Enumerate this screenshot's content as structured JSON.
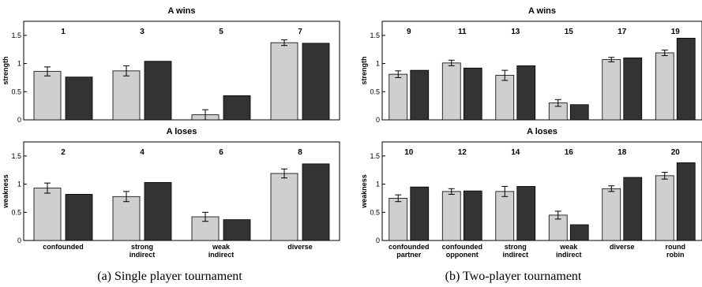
{
  "captions": {
    "a": "(a) Single player tournament",
    "b": "(b) Two-player tournament"
  },
  "colors": {
    "light": "#cfcfcf",
    "dark": "#333333"
  },
  "chart_data": [
    {
      "type": "bar",
      "title": "A wins",
      "ylabel": "strength",
      "ylim": [
        0,
        1.75
      ],
      "yticks": [
        "0",
        "0.5",
        "1",
        "1.5"
      ],
      "yticks_val": [
        0,
        0.5,
        1,
        1.5
      ],
      "group_numbers": [
        "1",
        "3",
        "5",
        "7"
      ],
      "categories": [
        "",
        "",
        "",
        ""
      ],
      "series": [
        {
          "values": [
            0.86,
            0.87,
            0.09,
            1.37
          ],
          "err": [
            0.08,
            0.09,
            0.09,
            0.05
          ]
        },
        {
          "values": [
            0.76,
            1.04,
            0.43,
            1.36
          ]
        }
      ]
    },
    {
      "type": "bar",
      "title": "A loses",
      "ylabel": "weakness",
      "ylim": [
        0,
        1.75
      ],
      "yticks": [
        "0",
        "0.5",
        "1",
        "1.5"
      ],
      "yticks_val": [
        0,
        0.5,
        1,
        1.5
      ],
      "group_numbers": [
        "2",
        "4",
        "6",
        "8"
      ],
      "categories": [
        "confounded",
        "strong|indirect",
        "weak|indirect",
        "diverse"
      ],
      "series": [
        {
          "values": [
            0.93,
            0.78,
            0.42,
            1.19
          ],
          "err": [
            0.09,
            0.09,
            0.08,
            0.08
          ]
        },
        {
          "values": [
            0.82,
            1.03,
            0.37,
            1.36
          ]
        }
      ]
    },
    {
      "type": "bar",
      "title": "A wins",
      "ylabel": "strength",
      "ylim": [
        0,
        1.75
      ],
      "yticks": [
        "0",
        "0.5",
        "1",
        "1.5"
      ],
      "yticks_val": [
        0,
        0.5,
        1,
        1.5
      ],
      "group_numbers": [
        "9",
        "11",
        "13",
        "15",
        "17",
        "19"
      ],
      "categories": [
        "",
        "",
        "",
        "",
        "",
        ""
      ],
      "series": [
        {
          "values": [
            0.81,
            1.01,
            0.79,
            0.3,
            1.07,
            1.19
          ],
          "err": [
            0.06,
            0.05,
            0.09,
            0.06,
            0.04,
            0.05
          ]
        },
        {
          "values": [
            0.88,
            0.92,
            0.96,
            0.27,
            1.1,
            1.45
          ]
        }
      ]
    },
    {
      "type": "bar",
      "title": "A loses",
      "ylabel": "weakness",
      "ylim": [
        0,
        1.75
      ],
      "yticks": [
        "0",
        "0.5",
        "1",
        "1.5"
      ],
      "yticks_val": [
        0,
        0.5,
        1,
        1.5
      ],
      "group_numbers": [
        "10",
        "12",
        "14",
        "16",
        "18",
        "20"
      ],
      "categories": [
        "confounded|partner",
        "confounded|opponent",
        "strong|indirect",
        "weak|indirect",
        "diverse",
        "round|robin"
      ],
      "series": [
        {
          "values": [
            0.75,
            0.87,
            0.87,
            0.45,
            0.92,
            1.15
          ],
          "err": [
            0.06,
            0.05,
            0.09,
            0.07,
            0.05,
            0.06
          ]
        },
        {
          "values": [
            0.95,
            0.88,
            0.96,
            0.28,
            1.12,
            1.38
          ]
        }
      ]
    }
  ]
}
